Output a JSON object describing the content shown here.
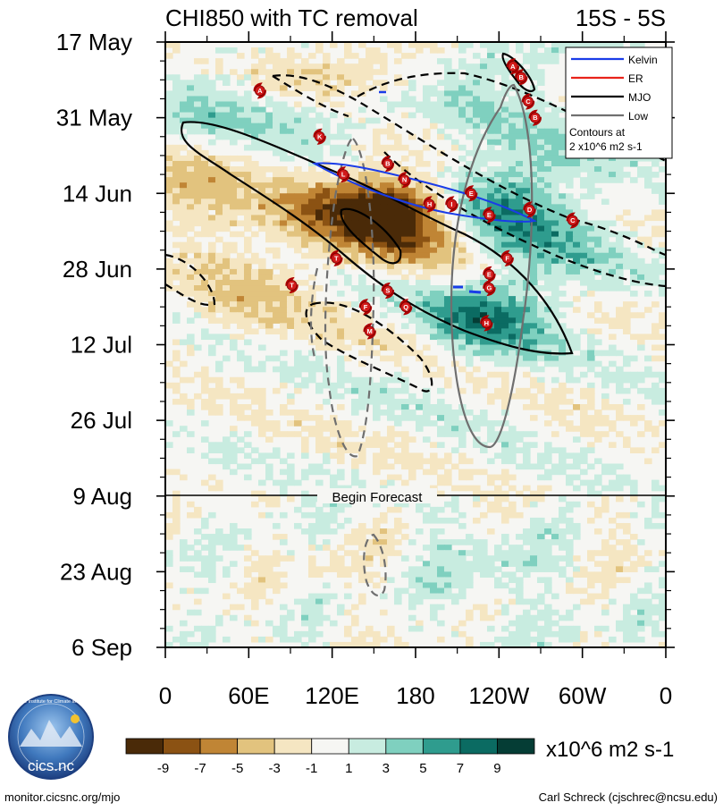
{
  "chart_data": {
    "type": "heatmap",
    "title": "CHI850 with TC removal",
    "region": "15S - 5S",
    "y_ticks": [
      "17 May",
      "31 May",
      "14 Jun",
      "28 Jun",
      "12 Jul",
      "26 Jul",
      "9 Aug",
      "23 Aug",
      "6 Sep"
    ],
    "x_ticks": [
      "0",
      "60E",
      "120E",
      "180",
      "120W",
      "60W",
      "0"
    ],
    "x_range_deg_east": [
      0,
      360
    ],
    "y_range_days_from_17may": [
      0,
      112
    ],
    "forecast_label": "Begin Forecast",
    "forecast_start_day": 84,
    "colorbar": {
      "labels": [
        "-9",
        "-7",
        "-5",
        "-3",
        "-1",
        "1",
        "3",
        "5",
        "7",
        "9"
      ],
      "colors": [
        "#4a2a08",
        "#8b5213",
        "#c08535",
        "#e2c37e",
        "#f5e6c2",
        "#f6f6f3",
        "#c8ece0",
        "#7fd0bf",
        "#2f9c8e",
        "#0b6b62",
        "#053d35"
      ],
      "units": "x10^6 m2 s-1"
    },
    "legend": {
      "entries": [
        {
          "name": "Kelvin",
          "color": "#1a3ce8"
        },
        {
          "name": "ER",
          "color": "#e8231a"
        },
        {
          "name": "MJO",
          "color": "#000000"
        },
        {
          "name": "Low",
          "color": "#707070"
        }
      ],
      "note_lines": [
        "Contours at",
        "2 x10^6 m2 s-1"
      ]
    },
    "storms": [
      {
        "id": "A",
        "lon": 68,
        "day": 9
      },
      {
        "id": "A",
        "lon": 250,
        "day": 4.5
      },
      {
        "id": "B",
        "lon": 256,
        "day": 6.5
      },
      {
        "id": "C",
        "lon": 261,
        "day": 11
      },
      {
        "id": "B",
        "lon": 266,
        "day": 14
      },
      {
        "id": "K",
        "lon": 111,
        "day": 17.5
      },
      {
        "id": "B",
        "lon": 160,
        "day": 22.5
      },
      {
        "id": "L",
        "lon": 128,
        "day": 24.5
      },
      {
        "id": "N",
        "lon": 172,
        "day": 25.5
      },
      {
        "id": "E",
        "lon": 220,
        "day": 28
      },
      {
        "id": "H",
        "lon": 190,
        "day": 30
      },
      {
        "id": "I",
        "lon": 206,
        "day": 30
      },
      {
        "id": "D",
        "lon": 262,
        "day": 31
      },
      {
        "id": "E",
        "lon": 233,
        "day": 32
      },
      {
        "id": "C",
        "lon": 293,
        "day": 33
      },
      {
        "id": "T",
        "lon": 123,
        "day": 40
      },
      {
        "id": "F",
        "lon": 246,
        "day": 40
      },
      {
        "id": "E",
        "lon": 233,
        "day": 43
      },
      {
        "id": "T",
        "lon": 91,
        "day": 45
      },
      {
        "id": "G",
        "lon": 233,
        "day": 45.5
      },
      {
        "id": "S",
        "lon": 160,
        "day": 46
      },
      {
        "id": "F",
        "lon": 144,
        "day": 49
      },
      {
        "id": "Q",
        "lon": 173,
        "day": 49
      },
      {
        "id": "H",
        "lon": 231,
        "day": 52
      },
      {
        "id": "M",
        "lon": 147,
        "day": 53.5
      }
    ]
  },
  "footer": {
    "logo_text": "cics.nc",
    "logo_ring_text": "Cooperative Institute for Climate and Satellites",
    "left": "monitor.cicsnc.org/mjo",
    "right": "Carl Schreck (cjschrec@ncsu.edu)"
  }
}
